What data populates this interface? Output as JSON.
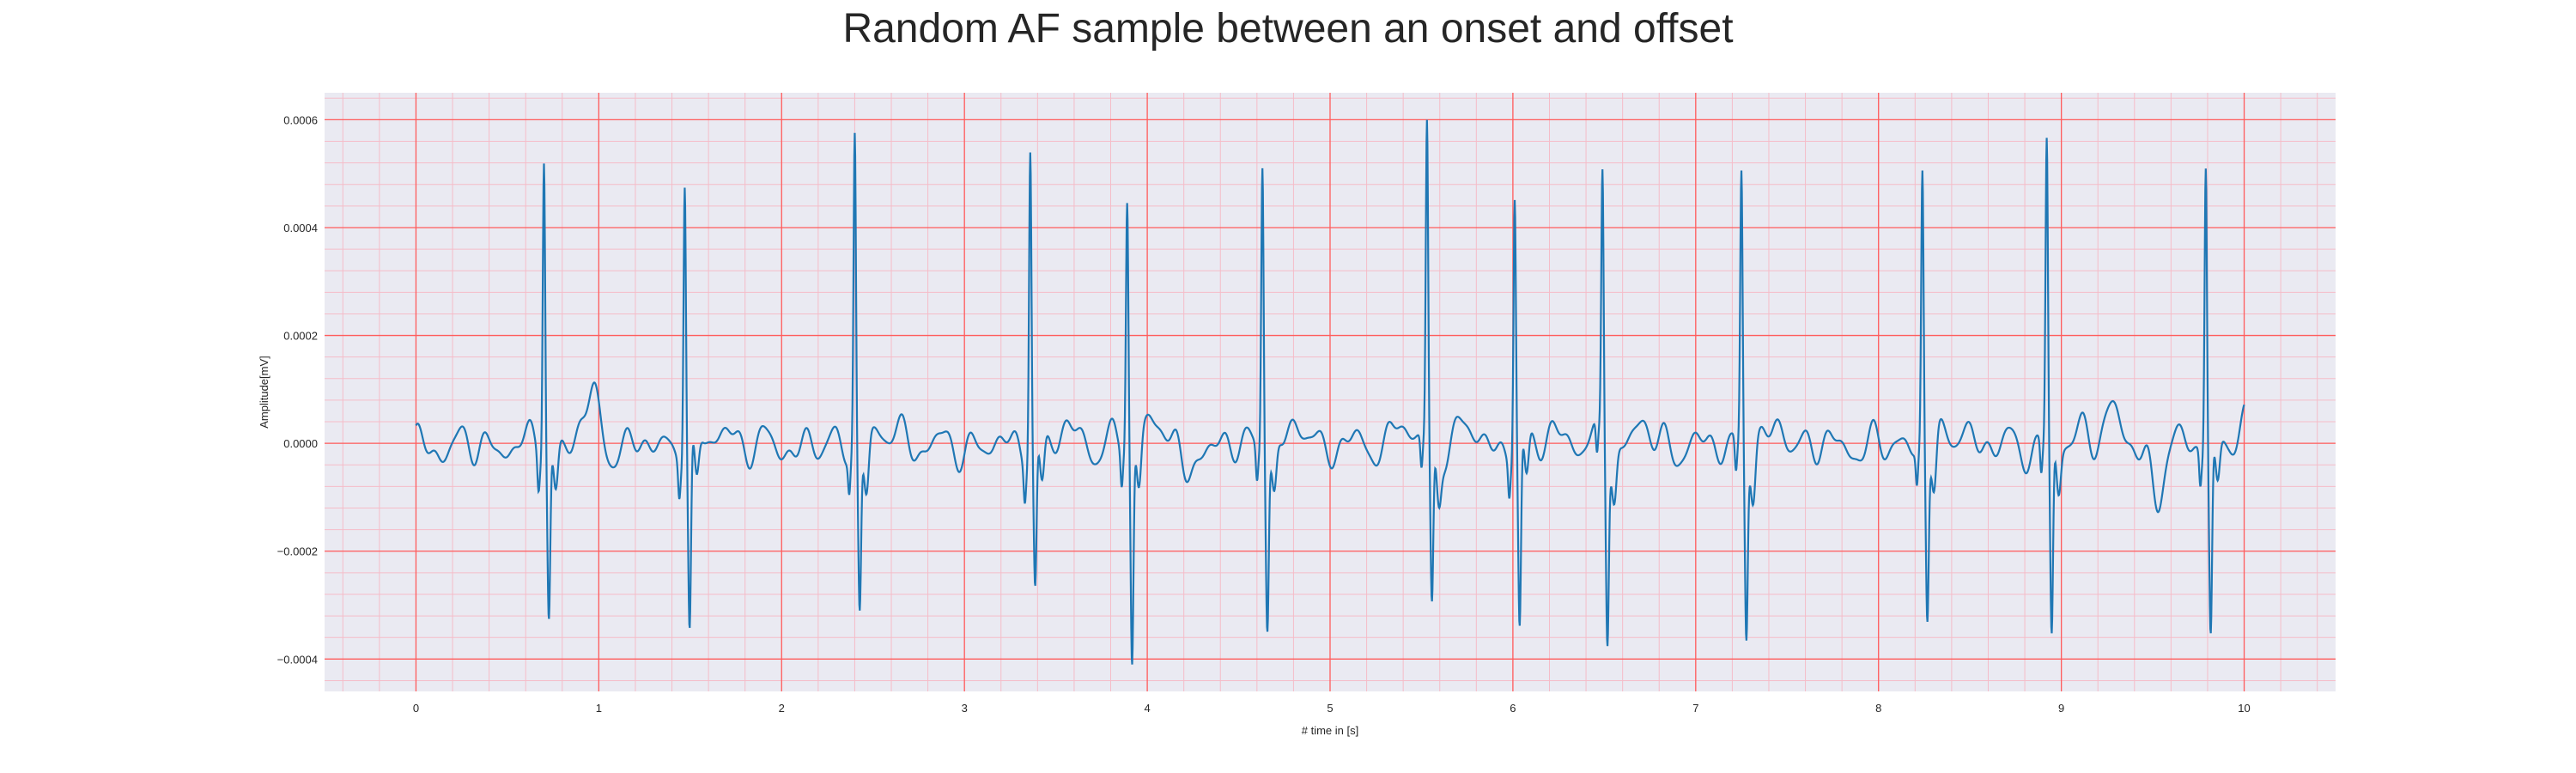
{
  "chart_data": {
    "type": "line",
    "title": "Random AF sample between an onset and offset",
    "xlabel": "# time in [s]",
    "ylabel": "Amplitude[mV]",
    "xlim": [
      -0.5,
      10.5
    ],
    "ylim": [
      -0.00046,
      0.00065
    ],
    "xticks": [
      0,
      1,
      2,
      3,
      4,
      5,
      6,
      7,
      8,
      9,
      10
    ],
    "yticks": [
      -0.0004,
      -0.0002,
      0.0,
      0.0002,
      0.0004,
      0.0006
    ],
    "ytick_labels": [
      "−0.0004",
      "−0.0002",
      "0.0000",
      "0.0002",
      "0.0004",
      "0.0006"
    ],
    "grid": true,
    "minor_grid": true,
    "colors": {
      "line": "#1f77b4",
      "major_grid": "#ff5c5c",
      "minor_grid": "#f5bcc8",
      "background": "#eaeaf2"
    },
    "series": [
      {
        "values_note": "",
        "peaks": [
          {
            "t": 0.7,
            "r": 0.00056,
            "s": -0.00031
          },
          {
            "t": 1.47,
            "r": 0.00052,
            "s": -0.00035
          },
          {
            "t": 2.4,
            "r": 0.00059,
            "s": -0.00029
          },
          {
            "t": 3.36,
            "r": 0.00058,
            "s": -0.00026
          },
          {
            "t": 3.89,
            "r": 0.00046,
            "s": -0.00041
          },
          {
            "t": 4.63,
            "r": 0.00055,
            "s": -0.00031
          },
          {
            "t": 5.53,
            "r": 0.0006,
            "s": -0.00029
          },
          {
            "t": 6.01,
            "r": 0.00048,
            "s": -0.00035
          },
          {
            "t": 6.49,
            "r": 0.00051,
            "s": -0.00033
          },
          {
            "t": 7.25,
            "r": 0.00052,
            "s": -0.00033
          },
          {
            "t": 8.24,
            "r": 0.00052,
            "s": -0.0003
          },
          {
            "t": 8.92,
            "r": 0.00057,
            "s": -0.00036
          },
          {
            "t": 9.79,
            "r": 0.00055,
            "s": -0.00034
          }
        ],
        "t_start": 0.0,
        "t_end": 10.0
      }
    ]
  }
}
